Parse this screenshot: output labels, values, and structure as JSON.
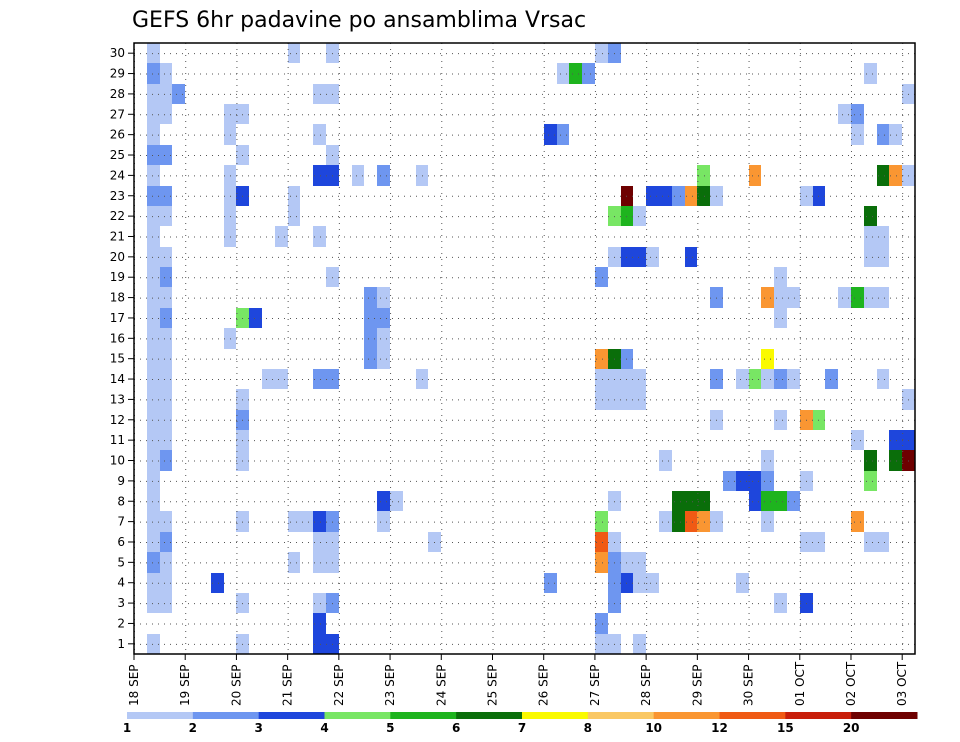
{
  "chart_data": {
    "type": "heatmap",
    "title": "GEFS 6hr padavine po ansamblima Vrsac",
    "x_tick_labels": [
      "18 SEP",
      "19 SEP",
      "20 SEP",
      "21 SEP",
      "22 SEP",
      "23 SEP",
      "24 SEP",
      "25 SEP",
      "26 SEP",
      "27 SEP",
      "28 SEP",
      "29 SEP",
      "30 SEP",
      "01 OCT",
      "02 OCT",
      "03 OCT"
    ],
    "y_tick_labels": [
      "1",
      "2",
      "3",
      "4",
      "5",
      "6",
      "7",
      "8",
      "9",
      "10",
      "11",
      "12",
      "13",
      "14",
      "15",
      "16",
      "17",
      "18",
      "19",
      "20",
      "21",
      "22",
      "23",
      "24",
      "25",
      "26",
      "27",
      "28",
      "29",
      "30"
    ],
    "x_range": [
      0,
      61
    ],
    "y_range": [
      0.5,
      30.5
    ],
    "steps_per_day": 4,
    "grid": true,
    "legend_position": "bottom",
    "legend_labels": [
      "1",
      "2",
      "3",
      "4",
      "5",
      "6",
      "7",
      "8",
      "10",
      "12",
      "15",
      "20"
    ],
    "color_levels": [
      {
        "min": 1,
        "max": 2,
        "color": "#b4c8f5"
      },
      {
        "min": 2,
        "max": 3,
        "color": "#6e96f0"
      },
      {
        "min": 3,
        "max": 4,
        "color": "#1e46dc"
      },
      {
        "min": 4,
        "max": 5,
        "color": "#78e664"
      },
      {
        "min": 5,
        "max": 6,
        "color": "#1eb41e"
      },
      {
        "min": 6,
        "max": 7,
        "color": "#0a6e0a"
      },
      {
        "min": 7,
        "max": 8,
        "color": "#fafa00"
      },
      {
        "min": 8,
        "max": 10,
        "color": "#fac864"
      },
      {
        "min": 10,
        "max": 12,
        "color": "#fa9632"
      },
      {
        "min": 12,
        "max": 15,
        "color": "#f05a14"
      },
      {
        "min": 15,
        "max": 20,
        "color": "#c81e0a"
      },
      {
        "min": 20,
        "max": null,
        "color": "#6e0000"
      }
    ],
    "cells": [
      [
        1,
        1,
        1.5
      ],
      [
        1,
        6,
        1.5
      ],
      [
        1,
        7,
        1.5
      ],
      [
        1,
        8,
        1.5
      ],
      [
        1,
        9,
        1.5
      ],
      [
        1,
        10,
        1.5
      ],
      [
        1,
        11,
        1.5
      ],
      [
        1,
        12,
        1.5
      ],
      [
        1,
        13,
        1.5
      ],
      [
        1,
        14,
        1.5
      ],
      [
        1,
        15,
        1.5
      ],
      [
        1,
        16,
        1.5
      ],
      [
        1,
        17,
        1.5
      ],
      [
        1,
        18,
        1.5
      ],
      [
        1,
        19,
        1.5
      ],
      [
        1,
        20,
        1.5
      ],
      [
        1,
        21,
        1.5
      ],
      [
        1,
        22,
        1.5
      ],
      [
        1,
        24,
        1.5
      ],
      [
        1,
        26,
        1.5
      ],
      [
        1,
        27,
        1.5
      ],
      [
        1,
        28,
        1.5
      ],
      [
        1,
        30,
        1.5
      ],
      [
        1,
        3,
        1.5
      ],
      [
        1,
        4,
        1.5
      ],
      [
        1,
        5,
        2.5
      ],
      [
        1,
        23,
        2.5
      ],
      [
        1,
        25,
        2.5
      ],
      [
        1,
        29,
        2.5
      ],
      [
        2,
        3,
        1.5
      ],
      [
        2,
        4,
        1.5
      ],
      [
        2,
        5,
        1.5
      ],
      [
        2,
        7,
        1.5
      ],
      [
        2,
        11,
        1.5
      ],
      [
        2,
        12,
        1.5
      ],
      [
        2,
        13,
        1.5
      ],
      [
        2,
        14,
        1.5
      ],
      [
        2,
        15,
        1.5
      ],
      [
        2,
        16,
        1.5
      ],
      [
        2,
        18,
        1.5
      ],
      [
        2,
        20,
        1.5
      ],
      [
        2,
        22,
        1.5
      ],
      [
        2,
        23,
        2.5
      ],
      [
        2,
        25,
        2.5
      ],
      [
        2,
        27,
        1.5
      ],
      [
        2,
        28,
        1.5
      ],
      [
        2,
        29,
        1.5
      ],
      [
        2,
        6,
        2.5
      ],
      [
        2,
        10,
        2.5
      ],
      [
        2,
        17,
        2.5
      ],
      [
        2,
        19,
        2.5
      ],
      [
        3,
        28,
        2.5
      ],
      [
        6,
        4,
        3.5
      ],
      [
        7,
        21,
        1.5
      ],
      [
        7,
        22,
        1.5
      ],
      [
        7,
        23,
        1.5
      ],
      [
        7,
        24,
        1.5
      ],
      [
        7,
        26,
        1.5
      ],
      [
        7,
        27,
        1.5
      ],
      [
        7,
        16,
        1.5
      ],
      [
        8,
        27,
        1.5
      ],
      [
        8,
        25,
        1.5
      ],
      [
        8,
        3,
        1.5
      ],
      [
        8,
        7,
        1.5
      ],
      [
        8,
        10,
        1.5
      ],
      [
        8,
        11,
        1.5
      ],
      [
        8,
        12,
        2.5
      ],
      [
        8,
        13,
        1.5
      ],
      [
        8,
        17,
        4.5
      ],
      [
        8,
        23,
        3.5
      ],
      [
        8,
        1,
        1.5
      ],
      [
        9,
        17,
        3.5
      ],
      [
        10,
        14,
        1.5
      ],
      [
        11,
        14,
        1.5
      ],
      [
        11,
        21,
        1.5
      ],
      [
        12,
        5,
        1.5
      ],
      [
        12,
        7,
        1.5
      ],
      [
        12,
        22,
        1.5
      ],
      [
        12,
        23,
        1.5
      ],
      [
        12,
        30,
        1.5
      ],
      [
        13,
        7,
        1.5
      ],
      [
        14,
        1,
        3.5
      ],
      [
        14,
        2,
        3.5
      ],
      [
        14,
        3,
        1.5
      ],
      [
        14,
        5,
        1.5
      ],
      [
        14,
        6,
        1.5
      ],
      [
        14,
        7,
        3.5
      ],
      [
        14,
        14,
        2.5
      ],
      [
        14,
        21,
        1.5
      ],
      [
        14,
        24,
        3.5
      ],
      [
        14,
        26,
        1.5
      ],
      [
        14,
        28,
        1.5
      ],
      [
        15,
        1,
        3.5
      ],
      [
        15,
        3,
        2.5
      ],
      [
        15,
        5,
        1.5
      ],
      [
        15,
        6,
        1.5
      ],
      [
        15,
        7,
        2.5
      ],
      [
        15,
        14,
        2.5
      ],
      [
        15,
        19,
        1.5
      ],
      [
        15,
        24,
        3.5
      ],
      [
        15,
        25,
        1.5
      ],
      [
        15,
        28,
        1.5
      ],
      [
        15,
        30,
        1.5
      ],
      [
        17,
        24,
        1.5
      ],
      [
        18,
        15,
        2.5
      ],
      [
        18,
        16,
        2.5
      ],
      [
        18,
        17,
        2.5
      ],
      [
        18,
        18,
        2.5
      ],
      [
        19,
        7,
        1.5
      ],
      [
        19,
        8,
        3.5
      ],
      [
        19,
        15,
        1.5
      ],
      [
        19,
        16,
        1.5
      ],
      [
        19,
        17,
        2.5
      ],
      [
        19,
        18,
        1.5
      ],
      [
        19,
        24,
        2.5
      ],
      [
        20,
        8,
        1.5
      ],
      [
        22,
        14,
        1.5
      ],
      [
        22,
        24,
        1.5
      ],
      [
        23,
        6,
        1.5
      ],
      [
        32,
        4,
        2.5
      ],
      [
        32,
        26,
        3.5
      ],
      [
        33,
        26,
        2.5
      ],
      [
        33,
        29,
        1.5
      ],
      [
        34,
        29,
        5.5
      ],
      [
        35,
        29,
        2.5
      ],
      [
        36,
        30,
        1.5
      ],
      [
        36,
        1,
        1.5
      ],
      [
        36,
        2,
        2.5
      ],
      [
        36,
        5,
        10.5
      ],
      [
        36,
        6,
        13
      ],
      [
        36,
        7,
        4.5
      ],
      [
        36,
        13,
        1.5
      ],
      [
        36,
        14,
        1.5
      ],
      [
        36,
        15,
        11
      ],
      [
        36,
        19,
        2.5
      ],
      [
        37,
        1,
        1.5
      ],
      [
        37,
        3,
        2.5
      ],
      [
        37,
        4,
        2.5
      ],
      [
        37,
        5,
        2.5
      ],
      [
        37,
        6,
        1.5
      ],
      [
        37,
        8,
        1.5
      ],
      [
        37,
        13,
        1.5
      ],
      [
        37,
        14,
        1.5
      ],
      [
        37,
        15,
        6.5
      ],
      [
        37,
        20,
        1.5
      ],
      [
        37,
        22,
        4.5
      ],
      [
        37,
        30,
        2.5
      ],
      [
        38,
        4,
        3.5
      ],
      [
        38,
        5,
        1.5
      ],
      [
        38,
        13,
        1.5
      ],
      [
        38,
        14,
        1.5
      ],
      [
        38,
        15,
        2.5
      ],
      [
        38,
        20,
        3.5
      ],
      [
        38,
        22,
        5.5
      ],
      [
        38,
        23,
        21
      ],
      [
        39,
        1,
        1.5
      ],
      [
        39,
        4,
        1.5
      ],
      [
        39,
        5,
        1.5
      ],
      [
        39,
        13,
        1.5
      ],
      [
        39,
        14,
        1.5
      ],
      [
        39,
        20,
        3.5
      ],
      [
        39,
        22,
        1.5
      ],
      [
        40,
        4,
        1.5
      ],
      [
        40,
        20,
        1.5
      ],
      [
        40,
        23,
        3.5
      ],
      [
        41,
        7,
        1.5
      ],
      [
        41,
        10,
        1.5
      ],
      [
        41,
        7,
        1.5
      ],
      [
        41,
        23,
        3.5
      ],
      [
        42,
        7,
        6.5
      ],
      [
        42,
        8,
        6.5
      ],
      [
        42,
        23,
        2.5
      ],
      [
        43,
        7,
        13
      ],
      [
        43,
        8,
        6.5
      ],
      [
        43,
        20,
        3.5
      ],
      [
        43,
        23,
        11
      ],
      [
        44,
        7,
        11
      ],
      [
        44,
        8,
        6.5
      ],
      [
        44,
        23,
        6.5
      ],
      [
        44,
        24,
        4.5
      ],
      [
        45,
        7,
        1.5
      ],
      [
        45,
        12,
        1.5
      ],
      [
        45,
        14,
        2.5
      ],
      [
        45,
        18,
        2.5
      ],
      [
        45,
        23,
        1.5
      ],
      [
        46,
        9,
        2.5
      ],
      [
        47,
        4,
        1.5
      ],
      [
        47,
        9,
        3.5
      ],
      [
        47,
        14,
        1.5
      ],
      [
        48,
        8,
        3.5
      ],
      [
        48,
        9,
        3.5
      ],
      [
        48,
        14,
        4.5
      ],
      [
        48,
        24,
        11
      ],
      [
        49,
        7,
        1.5
      ],
      [
        49,
        8,
        5.5
      ],
      [
        49,
        9,
        2.5
      ],
      [
        49,
        10,
        1.5
      ],
      [
        49,
        14,
        1.5
      ],
      [
        49,
        15,
        7.5
      ],
      [
        49,
        18,
        10.5
      ],
      [
        50,
        3,
        1.5
      ],
      [
        50,
        8,
        5.5
      ],
      [
        50,
        12,
        1.5
      ],
      [
        50,
        14,
        2.5
      ],
      [
        50,
        17,
        1.5
      ],
      [
        50,
        18,
        1.5
      ],
      [
        50,
        19,
        1.5
      ],
      [
        51,
        8,
        2.5
      ],
      [
        51,
        14,
        1.5
      ],
      [
        51,
        18,
        1.5
      ],
      [
        52,
        6,
        1.5
      ],
      [
        52,
        3,
        3.5
      ],
      [
        52,
        9,
        1.5
      ],
      [
        52,
        12,
        11
      ],
      [
        52,
        23,
        1.5
      ],
      [
        53,
        6,
        1.5
      ],
      [
        53,
        12,
        4.5
      ],
      [
        53,
        23,
        3.5
      ],
      [
        54,
        14,
        2.5
      ],
      [
        55,
        18,
        1.5
      ],
      [
        55,
        27,
        1.5
      ],
      [
        56,
        7,
        11
      ],
      [
        56,
        11,
        1.5
      ],
      [
        56,
        18,
        5.5
      ],
      [
        56,
        27,
        2.5
      ],
      [
        56,
        26,
        1.5
      ],
      [
        57,
        6,
        1.5
      ],
      [
        57,
        9,
        4.5
      ],
      [
        57,
        10,
        6.5
      ],
      [
        57,
        18,
        1.5
      ],
      [
        57,
        20,
        1.5
      ],
      [
        57,
        21,
        1.5
      ],
      [
        57,
        22,
        6.5
      ],
      [
        57,
        29,
        1.5
      ],
      [
        58,
        6,
        1.5
      ],
      [
        58,
        14,
        1.5
      ],
      [
        58,
        18,
        1.5
      ],
      [
        58,
        20,
        1.5
      ],
      [
        58,
        21,
        1.5
      ],
      [
        58,
        24,
        6.5
      ],
      [
        58,
        26,
        2.5
      ],
      [
        59,
        10,
        6.5
      ],
      [
        59,
        11,
        3.5
      ],
      [
        59,
        24,
        11
      ],
      [
        59,
        26,
        1.5
      ],
      [
        60,
        10,
        21
      ],
      [
        60,
        11,
        3.5
      ],
      [
        60,
        13,
        1.5
      ],
      [
        60,
        24,
        1.5
      ],
      [
        60,
        28,
        1.5
      ]
    ]
  }
}
